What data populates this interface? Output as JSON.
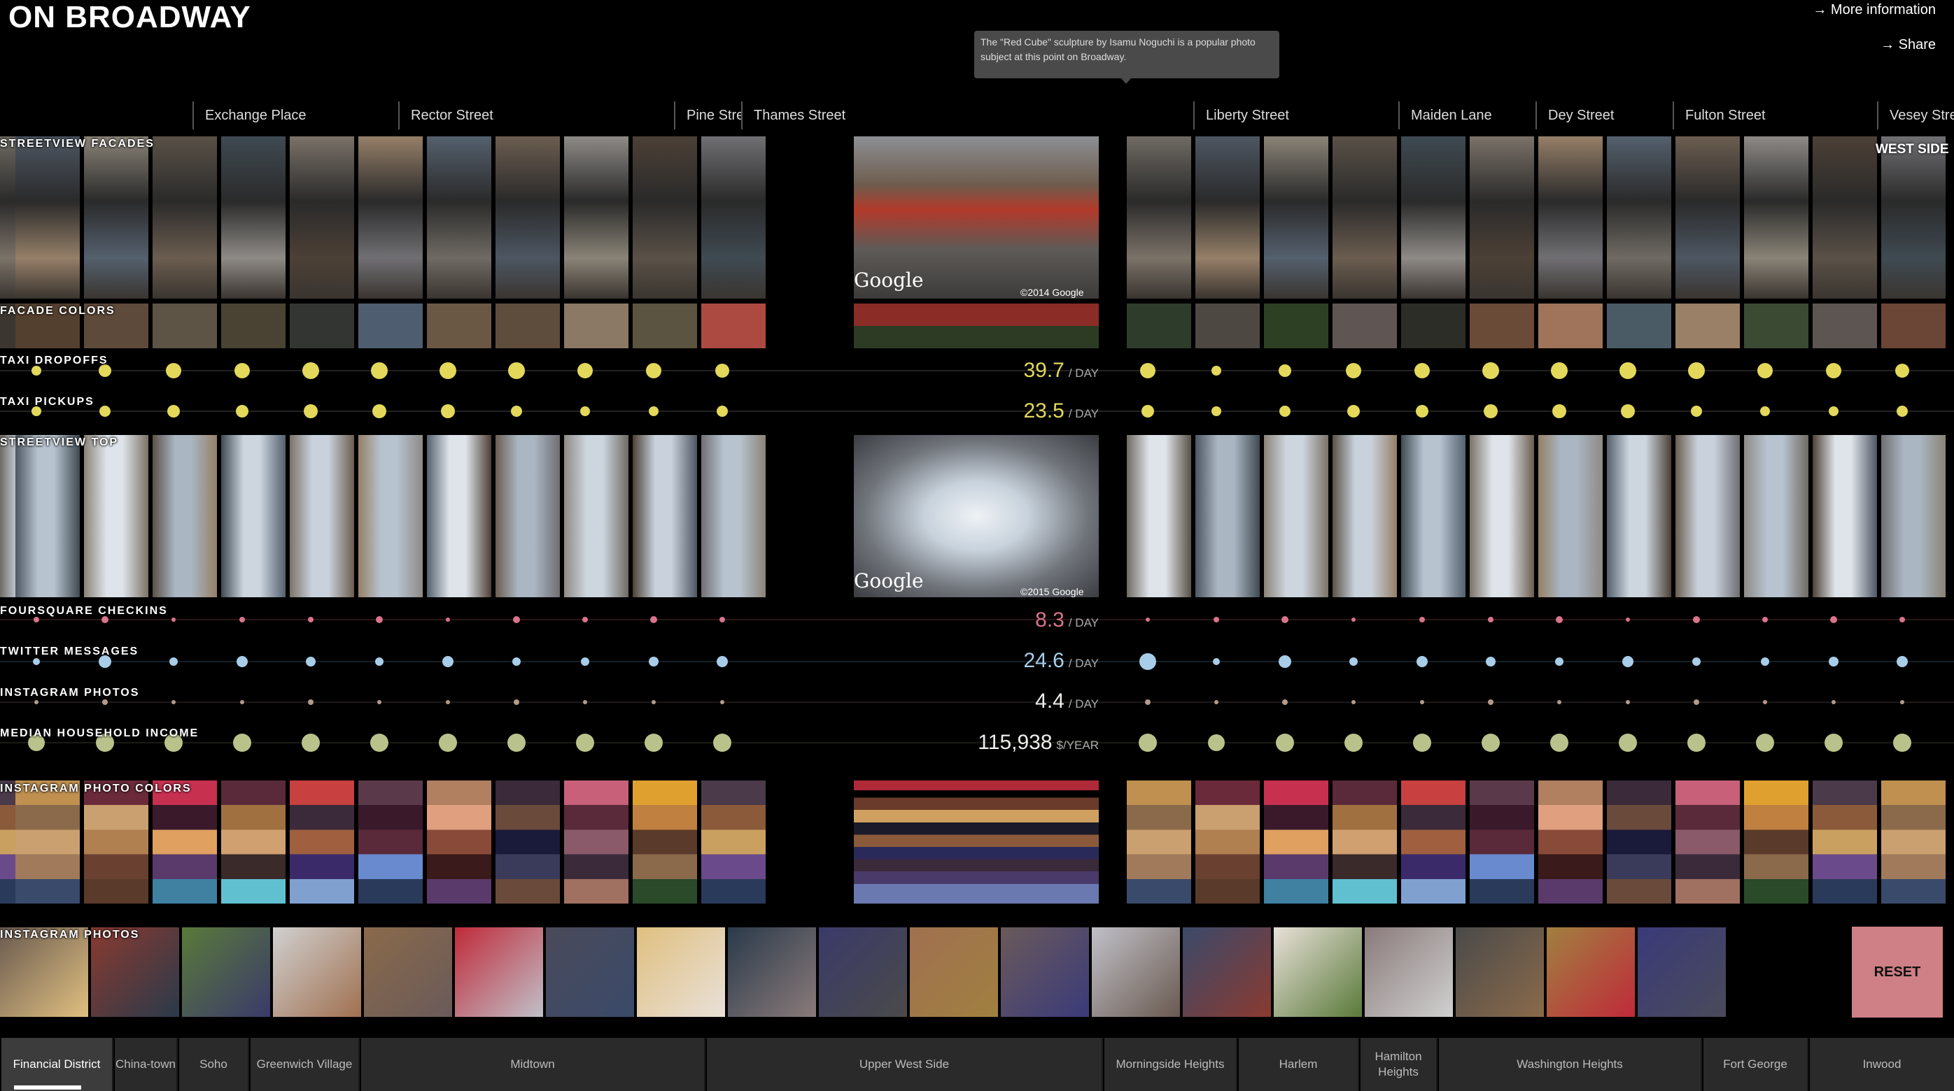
{
  "header": {
    "title": "ON BROADWAY",
    "more_info": "→ More information",
    "share": "→ Share"
  },
  "tooltip": "The \"Red Cube\" sculpture by Isamu Noguchi is a popular photo subject at this point on Broadway.",
  "streets": [
    "Exchange Place",
    "Rector Street",
    "Pine Street",
    "Thames Street",
    "Liberty Street",
    "Maiden Lane",
    "Dey Street",
    "Fulton Street",
    "Vesey Street"
  ],
  "rows": {
    "streetview_facades": "STREETVIEW FACADES",
    "facade_colors": "FACADE COLORS",
    "taxi_dropoffs": "TAXI DROPOFFS",
    "taxi_pickups": "TAXI PICKUPS",
    "streetview_top": "STREETVIEW TOP",
    "foursquare": "FOURSQUARE CHECKINS",
    "twitter": "TWITTER MESSAGES",
    "instagram_count": "INSTAGRAM PHOTOS",
    "income": "MEDIAN HOUSEHOLD INCOME",
    "instagram_colors": "INSTAGRAM PHOTO COLORS",
    "instagram_photos": "INSTAGRAM PHOTOS"
  },
  "readouts": {
    "taxi_dropoffs": {
      "value": "39.7",
      "unit": "/ DAY"
    },
    "taxi_pickups": {
      "value": "23.5",
      "unit": "/ DAY"
    },
    "foursquare": {
      "value": "8.3",
      "unit": "/ DAY"
    },
    "twitter": {
      "value": "24.6",
      "unit": "/ DAY"
    },
    "instagram_count": {
      "value": "4.4",
      "unit": "/ DAY"
    },
    "income": {
      "value": "115,938",
      "unit": "$/YEAR"
    }
  },
  "photo_credits": {
    "facade": "Google",
    "facade_copyright": "©2014 Google",
    "top": "Google",
    "top_copyright": "©2015 Google"
  },
  "side_label": "WEST SIDE",
  "reset_label": "RESET",
  "neighborhoods": [
    {
      "label": "Financial District",
      "active": true
    },
    {
      "label": "China-town",
      "active": false
    },
    {
      "label": "Soho",
      "active": false
    },
    {
      "label": "Greenwich Village",
      "active": false
    },
    {
      "label": "Midtown",
      "active": false
    },
    {
      "label": "Upper West Side",
      "active": false
    },
    {
      "label": "Morningside Heights",
      "active": false
    },
    {
      "label": "Harlem",
      "active": false
    },
    {
      "label": "Hamilton Heights",
      "active": false
    },
    {
      "label": "Washington Heights",
      "active": false
    },
    {
      "label": "Fort George",
      "active": false
    },
    {
      "label": "Inwood",
      "active": false
    }
  ],
  "colors": {
    "taxi": "#e3d85a",
    "foursquare": "#d9748c",
    "twitter": "#a8cde8",
    "instagram": "#b59a88",
    "income": "#b9c28a",
    "reset": "#cf7f86"
  }
}
